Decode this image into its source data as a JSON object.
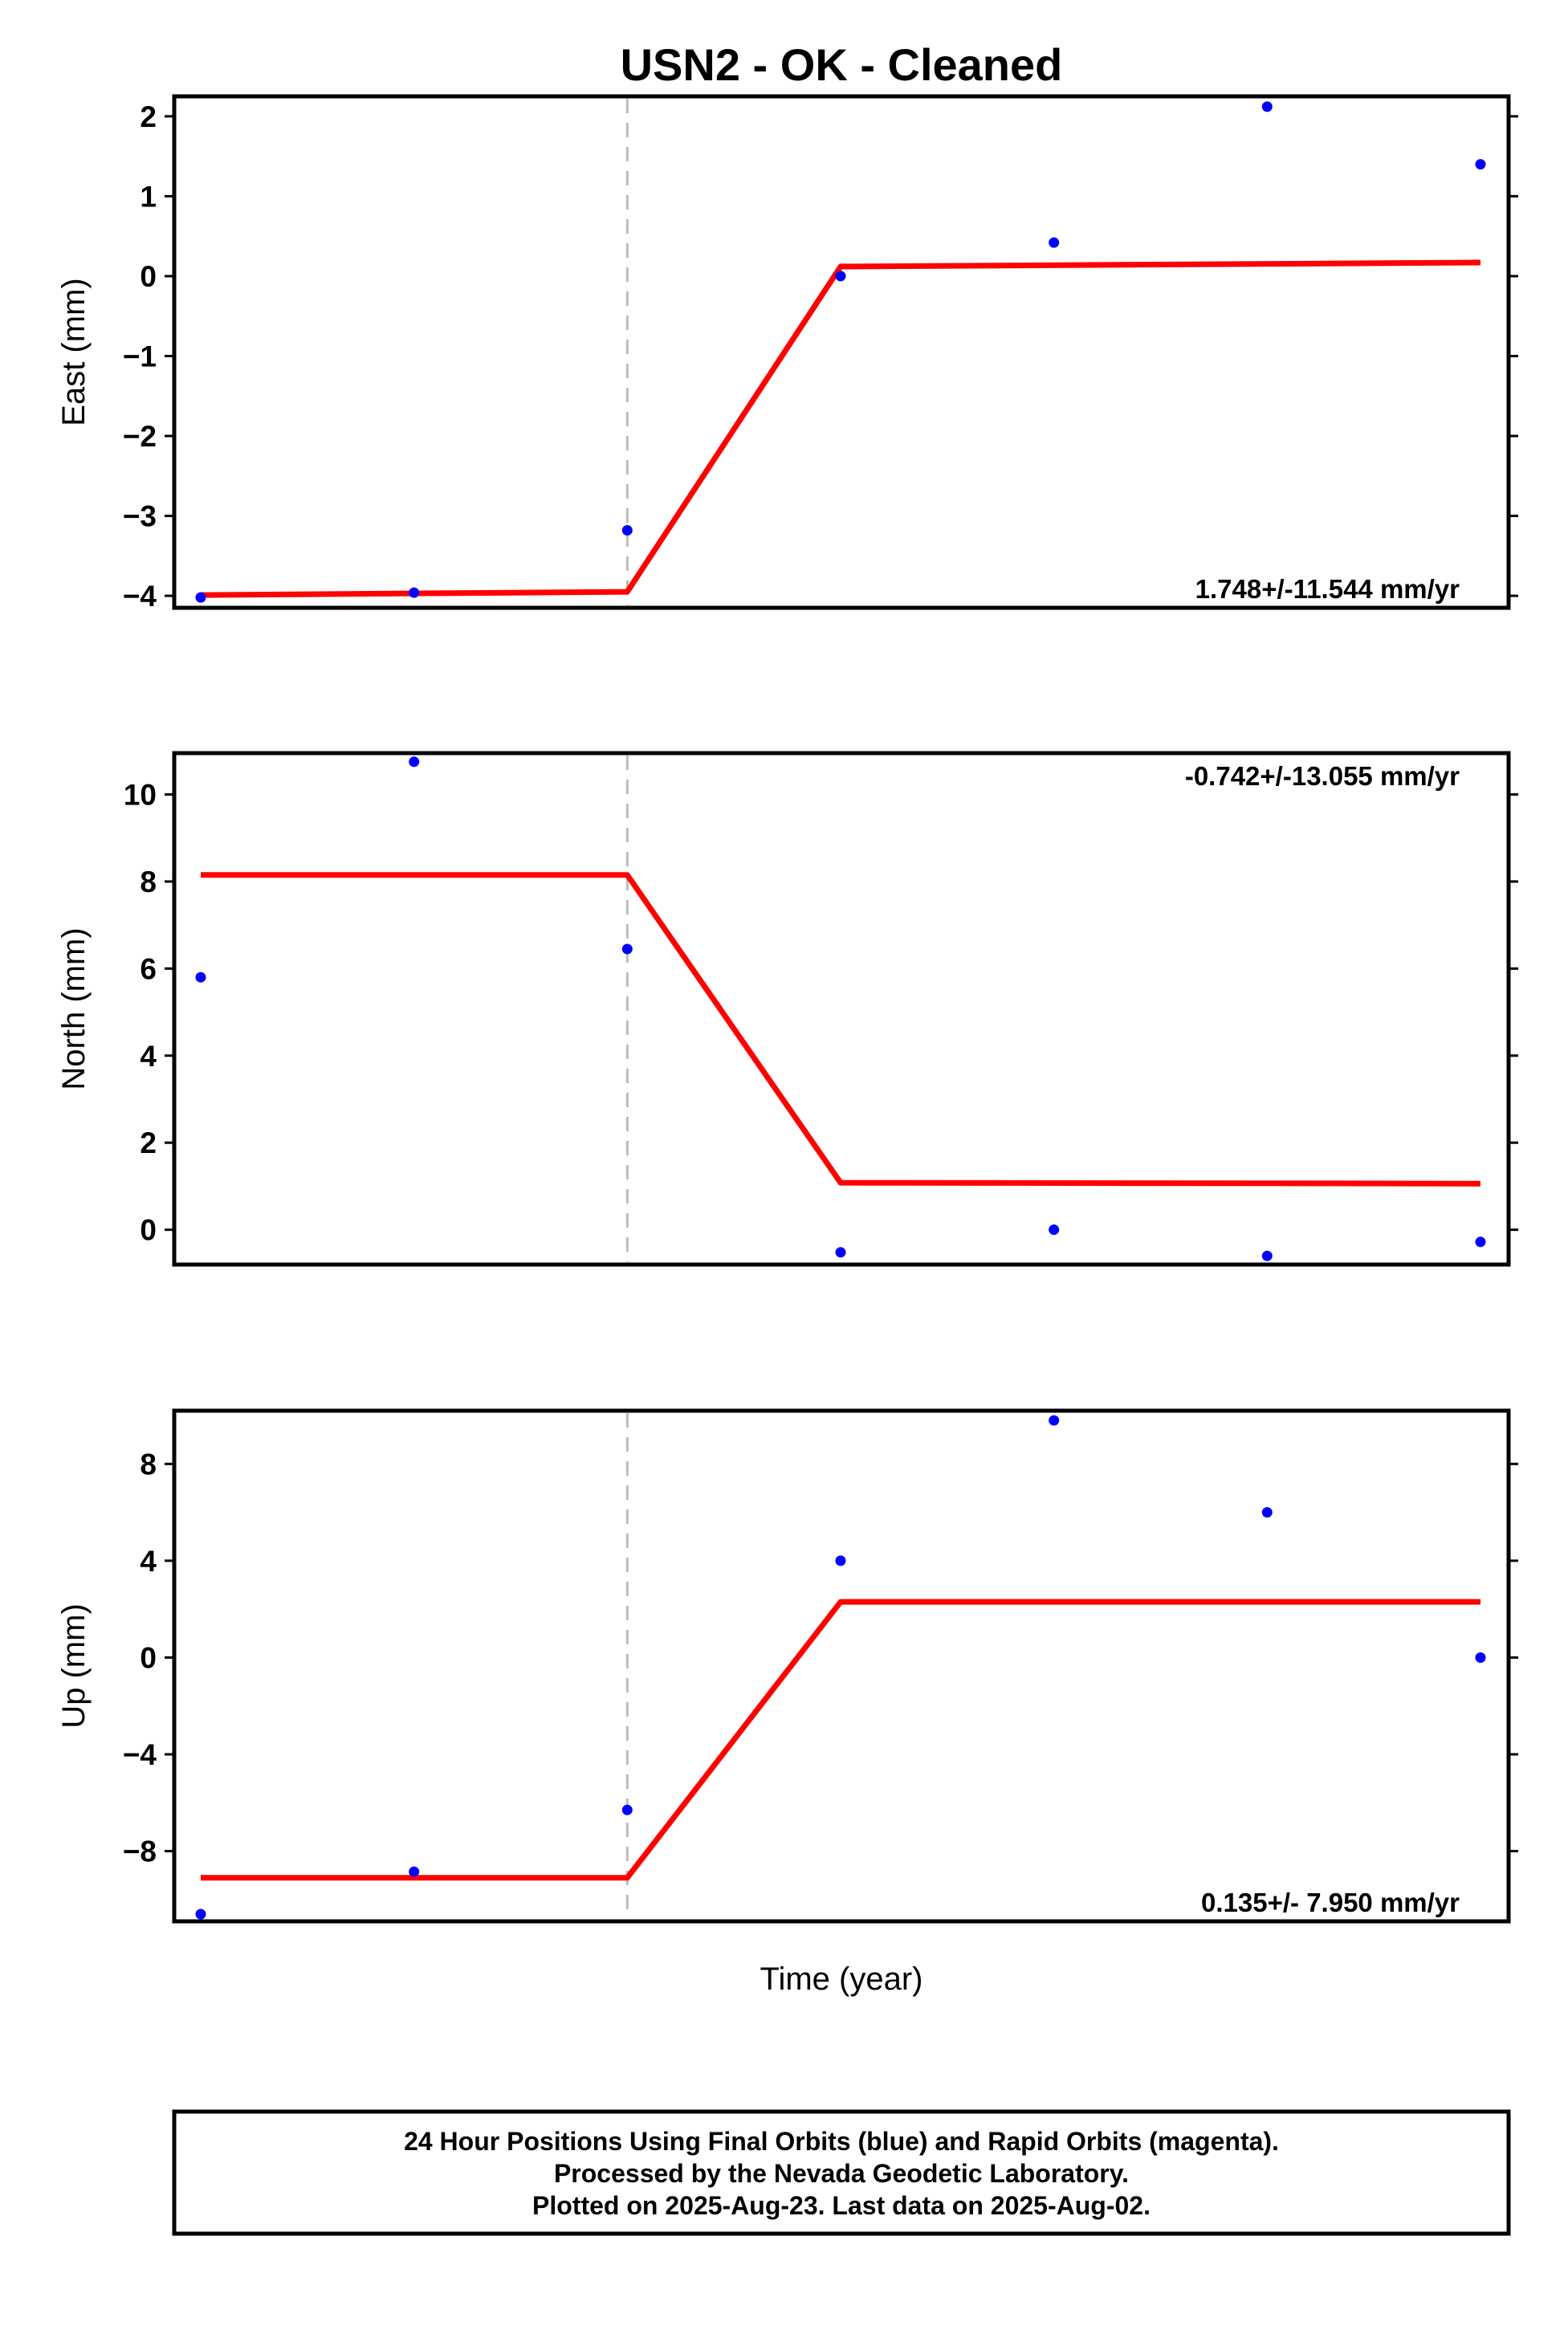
{
  "title": "USN2  - OK - Cleaned",
  "xlabel": "Time (year)",
  "colors": {
    "points": "#0000ff",
    "fit": "#ff0000",
    "event_line": "#bbbbbb"
  },
  "caption": {
    "line1": "24 Hour Positions Using Final Orbits (blue) and Rapid Orbits (magenta).",
    "line2": "Processed by the Nevada Geodetic Laboratory.",
    "line3": "Plotted on 2025-Aug-23. Last data on 2025-Aug-02."
  },
  "chart_data": [
    {
      "type": "scatter",
      "ylabel": "East (mm)",
      "rate_text": "1.748+/-11.544 mm/yr",
      "rate_position": "bottom-right",
      "ylim": [
        -4.15,
        2.25
      ],
      "yticks": [
        2,
        1,
        0,
        -1,
        -2,
        -3,
        -4
      ],
      "x_index": [
        0,
        1,
        2,
        3,
        4,
        5,
        6
      ],
      "points": [
        -4.02,
        -3.96,
        -3.18,
        0.0,
        0.42,
        2.12,
        1.4
      ],
      "fit": [
        [
          0,
          -3.99
        ],
        [
          2,
          -3.95
        ],
        [
          3,
          0.12
        ],
        [
          6,
          0.17
        ]
      ],
      "event_index": 2
    },
    {
      "type": "scatter",
      "ylabel": "North (mm)",
      "rate_text": "-0.742+/-13.055 mm/yr",
      "rate_position": "top-right",
      "ylim": [
        -0.8,
        10.95
      ],
      "yticks": [
        10,
        8,
        6,
        4,
        2,
        0
      ],
      "x_index": [
        0,
        1,
        2,
        3,
        4,
        5,
        6
      ],
      "points": [
        5.8,
        10.75,
        6.45,
        -0.52,
        0.0,
        -0.6,
        -0.28
      ],
      "fit": [
        [
          0,
          8.15
        ],
        [
          2,
          8.15
        ],
        [
          3,
          1.08
        ],
        [
          6,
          1.06
        ]
      ],
      "event_index": 2
    },
    {
      "type": "scatter",
      "ylabel": "Up (mm)",
      "rate_text": "0.135+/- 7.950 mm/yr",
      "rate_position": "bottom-right",
      "ylim": [
        -10.9,
        10.2
      ],
      "yticks": [
        8,
        4,
        0,
        -4,
        -8
      ],
      "x_index": [
        0,
        1,
        2,
        3,
        4,
        5,
        6
      ],
      "points": [
        -10.6,
        -8.85,
        -6.3,
        4.0,
        9.8,
        6.0,
        0.0
      ],
      "fit": [
        [
          0,
          -9.1
        ],
        [
          2,
          -9.1
        ],
        [
          3,
          2.3
        ],
        [
          6,
          2.3
        ]
      ],
      "event_index": 2
    }
  ]
}
